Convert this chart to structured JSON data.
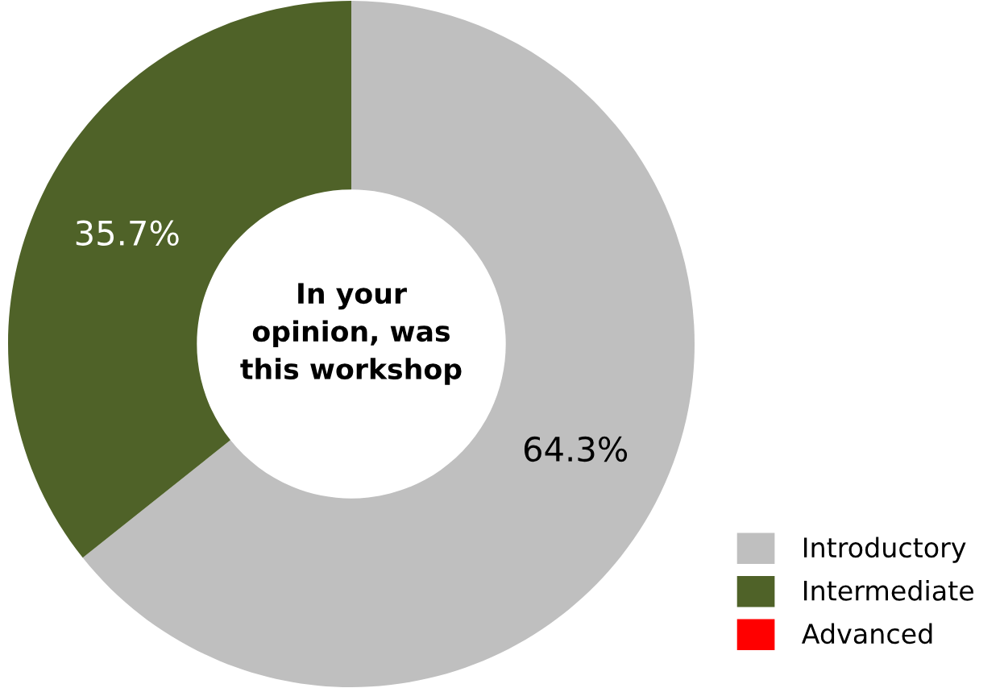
{
  "chart_data": {
    "type": "donut",
    "title": "In your\nopinion, was\nthis workshop",
    "categories": [
      "Introductory",
      "Intermediate",
      "Advanced"
    ],
    "values": [
      64.3,
      35.7,
      0
    ],
    "colors": [
      "#bfbfbf",
      "#4f6228",
      "#ff0000"
    ],
    "value_labels": [
      "64.3%",
      "35.7%",
      null
    ],
    "legend": "bottom right"
  }
}
